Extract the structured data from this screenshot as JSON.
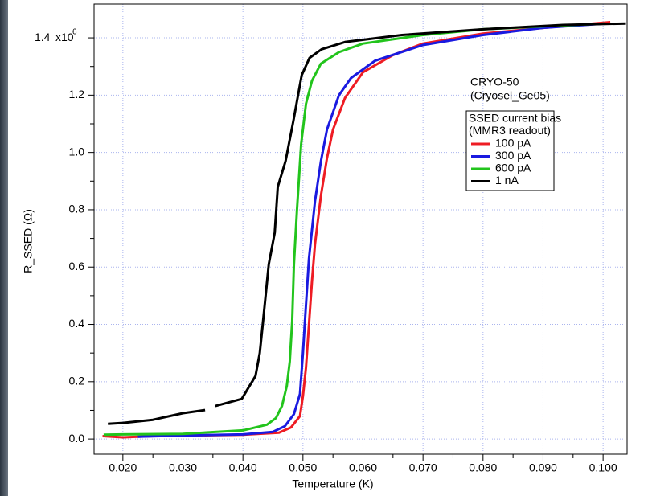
{
  "chart_data": {
    "type": "line",
    "x_label": "Temperature (K)",
    "y_label": "R_SSED (Ω)",
    "y_scale": "x10",
    "y_scale_exponent": "6",
    "annotations": [
      "CRYO-50",
      "(Cryosel_Ge05)"
    ],
    "legend_title": [
      "SSED current bias",
      "(MMR3 readout)"
    ],
    "xlim": [
      0.0152,
      0.104
    ],
    "ylim": [
      -53000,
      1518000
    ],
    "xticks": [
      {
        "value": 0.02,
        "label": "0.020"
      },
      {
        "value": 0.03,
        "label": "0.030"
      },
      {
        "value": 0.04,
        "label": "0.040"
      },
      {
        "value": 0.05,
        "label": "0.050"
      },
      {
        "value": 0.06,
        "label": "0.060"
      },
      {
        "value": 0.07,
        "label": "0.070"
      },
      {
        "value": 0.08,
        "label": "0.080"
      },
      {
        "value": 0.09,
        "label": "0.090"
      },
      {
        "value": 0.1,
        "label": "0.100"
      }
    ],
    "x_minor_ticks": [
      0.025,
      0.035,
      0.045,
      0.055,
      0.065,
      0.075,
      0.085,
      0.095
    ],
    "yticks": [
      {
        "value": 0,
        "label": "0.0"
      },
      {
        "value": 200000,
        "label": "0.2"
      },
      {
        "value": 400000,
        "label": "0.4"
      },
      {
        "value": 600000,
        "label": "0.6"
      },
      {
        "value": 800000,
        "label": "0.8"
      },
      {
        "value": 1000000,
        "label": "1.0"
      },
      {
        "value": 1200000,
        "label": "1.2"
      },
      {
        "value": 1400000,
        "label": "1.4"
      }
    ],
    "y_minor_ticks": [
      100000,
      300000,
      500000,
      700000,
      900000,
      1100000,
      1300000
    ],
    "grid": true,
    "legend_position": "right",
    "series": [
      {
        "name": "100 pA",
        "color": "#ee1c24",
        "x": [
          0.0166,
          0.02,
          0.025,
          0.03,
          0.04,
          0.046,
          0.048,
          0.0495,
          0.05,
          0.0505,
          0.051,
          0.0515,
          0.052,
          0.053,
          0.054,
          0.055,
          0.057,
          0.06,
          0.065,
          0.07,
          0.08,
          0.09,
          0.1012
        ],
        "values": [
          10000,
          6000,
          10000,
          12000,
          15000,
          22000,
          40000,
          80000,
          150000,
          250000,
          400000,
          550000,
          680000,
          850000,
          980000,
          1080000,
          1190000,
          1280000,
          1340000,
          1380000,
          1415000,
          1435000,
          1455000
        ]
      },
      {
        "name": "300 pA",
        "color": "#1a1ae0",
        "x": [
          0.0225,
          0.03,
          0.04,
          0.045,
          0.047,
          0.0485,
          0.0495,
          0.05,
          0.0505,
          0.051,
          0.052,
          0.053,
          0.054,
          0.056,
          0.058,
          0.062,
          0.07,
          0.08,
          0.09,
          0.1003
        ],
        "values": [
          8000,
          12000,
          16000,
          25000,
          45000,
          87000,
          157000,
          300000,
          470000,
          630000,
          830000,
          970000,
          1080000,
          1200000,
          1260000,
          1320000,
          1375000,
          1410000,
          1435000,
          1450000
        ]
      },
      {
        "name": "600 pA",
        "color": "#22c41c",
        "x": [
          0.0168,
          0.02,
          0.03,
          0.04,
          0.044,
          0.0455,
          0.0465,
          0.0473,
          0.0478,
          0.0482,
          0.0485,
          0.049,
          0.0497,
          0.0505,
          0.0515,
          0.053,
          0.056,
          0.06,
          0.07,
          0.08,
          0.09,
          0.1003
        ],
        "values": [
          15000,
          16000,
          18000,
          30000,
          50000,
          73000,
          115000,
          185000,
          270000,
          410000,
          610000,
          800000,
          1030000,
          1170000,
          1250000,
          1310000,
          1350000,
          1380000,
          1410000,
          1430000,
          1440000,
          1450000
        ]
      },
      {
        "name": "1 nA",
        "color": "#000000",
        "x": [
          0.0175,
          0.02,
          0.025,
          0.03,
          0.0337,
          0.0345,
          0.0354,
          0.0398,
          0.0421,
          0.0428,
          0.0433,
          0.0443,
          0.0453,
          0.0458,
          0.0471,
          0.0484,
          0.0498,
          0.0511,
          0.0531,
          0.0571,
          0.0665,
          0.08,
          0.0933,
          0.1038
        ],
        "values": [
          53000,
          56000,
          67000,
          90000,
          101000,
          null,
          115000,
          140000,
          220000,
          300000,
          400000,
          610000,
          720000,
          880000,
          970000,
          1110000,
          1270000,
          1330000,
          1360000,
          1386000,
          1410000,
          1430000,
          1445000,
          1450000
        ]
      }
    ]
  }
}
